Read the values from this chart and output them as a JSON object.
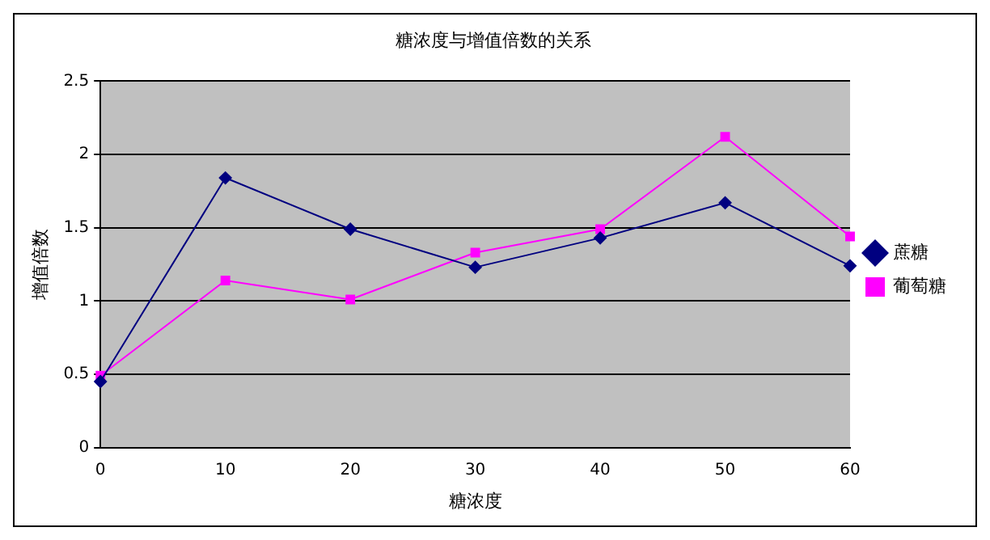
{
  "chart_data": {
    "type": "line",
    "title": "糖浓度与增值倍数的关系",
    "xlabel": "糖浓度",
    "ylabel": "增值倍数",
    "categories": [
      "0",
      "10",
      "20",
      "30",
      "40",
      "50",
      "60"
    ],
    "series": [
      {
        "name": "蔗糖",
        "color": "#000080",
        "values": [
          0.45,
          1.84,
          1.49,
          1.23,
          1.43,
          1.67,
          1.24
        ],
        "marker": "diamond"
      },
      {
        "name": "葡萄糖",
        "color": "#ff00ff",
        "values": [
          0.49,
          1.14,
          1.01,
          1.33,
          1.49,
          2.12,
          1.44
        ],
        "marker": "square"
      }
    ],
    "ylim": [
      0,
      2.5
    ],
    "yticks": [
      0,
      0.5,
      1,
      1.5,
      2,
      2.5
    ],
    "grid": "y",
    "legend": "right"
  }
}
